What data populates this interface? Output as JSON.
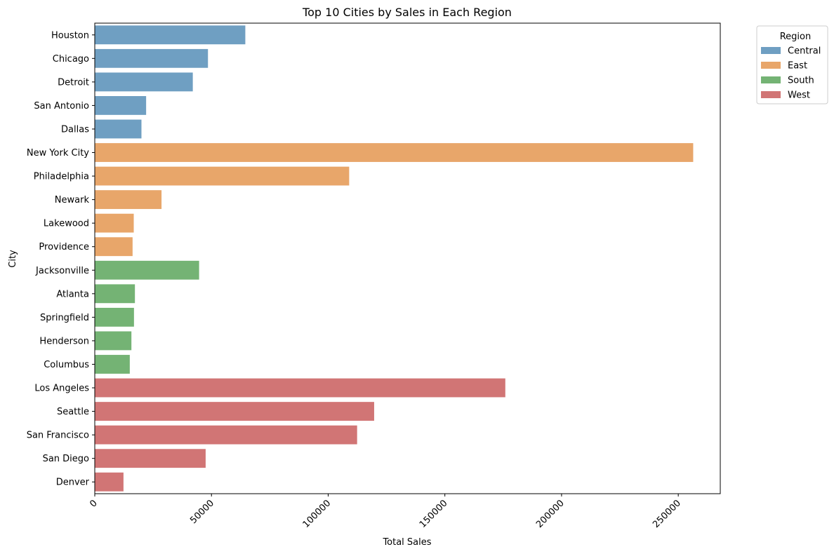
{
  "chart_data": {
    "type": "bar",
    "orientation": "horizontal",
    "title": "Top 10 Cities by Sales in Each Region",
    "xlabel": "Total Sales",
    "ylabel": "City",
    "xlim": [
      0,
      268000
    ],
    "xticks": [
      0,
      50000,
      100000,
      150000,
      200000,
      250000
    ],
    "grid": false,
    "legend": {
      "title": "Region",
      "placement": "outside-top-right"
    },
    "categories": [
      "Houston",
      "Chicago",
      "Detroit",
      "San Antonio",
      "Dallas",
      "New York City",
      "Philadelphia",
      "Newark",
      "Lakewood",
      "Providence",
      "Jacksonville",
      "Atlanta",
      "Springfield",
      "Henderson",
      "Columbus",
      "Los Angeles",
      "Seattle",
      "San Francisco",
      "San Diego",
      "Denver"
    ],
    "values": [
      64500,
      48500,
      42000,
      22000,
      20000,
      256400,
      109000,
      28600,
      16700,
      16200,
      44700,
      17200,
      16800,
      15700,
      15000,
      175900,
      119700,
      112400,
      47500,
      12300
    ],
    "regions": [
      "Central",
      "Central",
      "Central",
      "Central",
      "Central",
      "East",
      "East",
      "East",
      "East",
      "East",
      "South",
      "South",
      "South",
      "South",
      "South",
      "West",
      "West",
      "West",
      "West",
      "West"
    ],
    "series": [
      {
        "name": "Central",
        "color": "#6f9fc2"
      },
      {
        "name": "East",
        "color": "#e8a66a"
      },
      {
        "name": "South",
        "color": "#74b374"
      },
      {
        "name": "West",
        "color": "#d17575"
      }
    ]
  }
}
